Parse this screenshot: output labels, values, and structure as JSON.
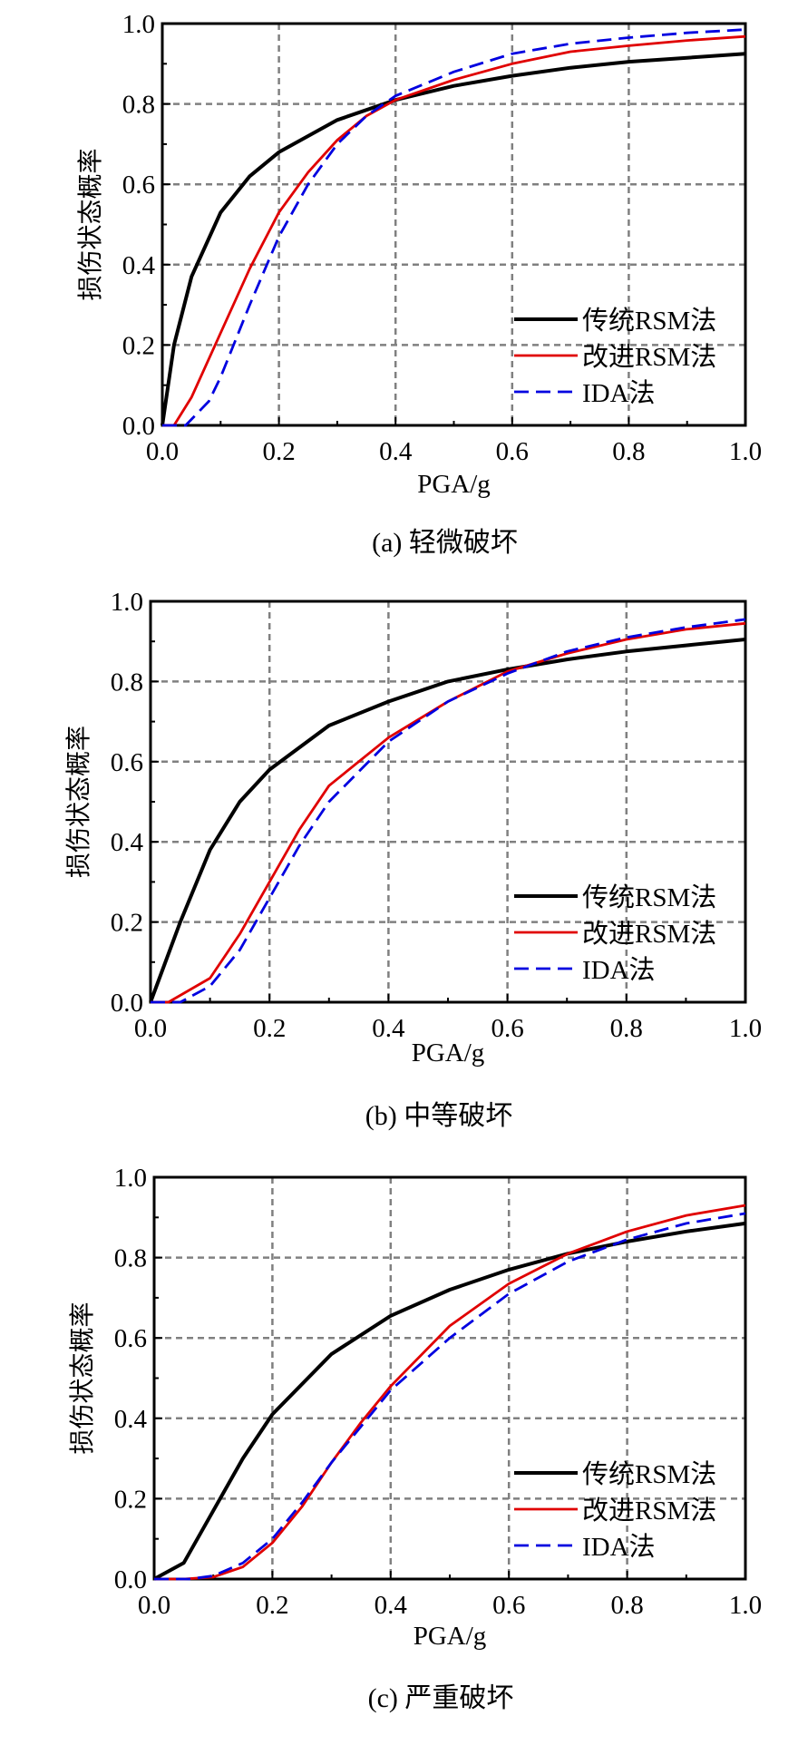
{
  "chart_data": [
    {
      "type": "line",
      "caption": "(a)  轻微破坏",
      "xlabel": "PGA/g",
      "ylabel": "损伤状态概率",
      "xlim": [
        0,
        1.0
      ],
      "ylim": [
        0,
        1.0
      ],
      "xticks": [
        "0.0",
        "0.2",
        "0.4",
        "0.6",
        "0.8",
        "1.0"
      ],
      "yticks": [
        "0.0",
        "0.2",
        "0.4",
        "0.6",
        "0.8",
        "1.0"
      ],
      "grid": true,
      "legend": "bottom-right",
      "series": [
        {
          "name": "传统RSM法",
          "color": "#000000",
          "style": "solid",
          "x": [
            0,
            0.02,
            0.05,
            0.1,
            0.15,
            0.2,
            0.3,
            0.4,
            0.5,
            0.6,
            0.7,
            0.8,
            0.9,
            1.0
          ],
          "y": [
            0,
            0.2,
            0.37,
            0.53,
            0.62,
            0.68,
            0.76,
            0.81,
            0.845,
            0.87,
            0.89,
            0.905,
            0.915,
            0.925
          ]
        },
        {
          "name": "改进RSM法",
          "color": "#e00000",
          "style": "solid",
          "x": [
            0,
            0.02,
            0.05,
            0.1,
            0.15,
            0.2,
            0.25,
            0.3,
            0.35,
            0.4,
            0.5,
            0.6,
            0.7,
            0.8,
            0.9,
            1.0
          ],
          "y": [
            0,
            0,
            0.07,
            0.23,
            0.39,
            0.53,
            0.63,
            0.71,
            0.77,
            0.81,
            0.86,
            0.9,
            0.93,
            0.945,
            0.958,
            0.968
          ]
        },
        {
          "name": "IDA法",
          "color": "#0000e0",
          "style": "dashed",
          "x": [
            0,
            0.04,
            0.08,
            0.1,
            0.15,
            0.2,
            0.25,
            0.3,
            0.35,
            0.4,
            0.5,
            0.6,
            0.7,
            0.8,
            0.9,
            1.0
          ],
          "y": [
            0,
            0,
            0.06,
            0.12,
            0.3,
            0.47,
            0.6,
            0.7,
            0.77,
            0.82,
            0.88,
            0.925,
            0.95,
            0.965,
            0.977,
            0.985
          ]
        }
      ]
    },
    {
      "type": "line",
      "caption": "(b)  中等破坏",
      "xlabel": "PGA/g",
      "ylabel": "损伤状态概率",
      "xlim": [
        0,
        1.0
      ],
      "ylim": [
        0,
        1.0
      ],
      "xticks": [
        "0.0",
        "0.2",
        "0.4",
        "0.6",
        "0.8",
        "1.0"
      ],
      "yticks": [
        "0.0",
        "0.2",
        "0.4",
        "0.6",
        "0.8",
        "1.0"
      ],
      "grid": true,
      "legend": "bottom-right",
      "series": [
        {
          "name": "传统RSM法",
          "color": "#000000",
          "style": "solid",
          "x": [
            0,
            0.05,
            0.1,
            0.15,
            0.2,
            0.3,
            0.4,
            0.5,
            0.6,
            0.7,
            0.8,
            0.9,
            1.0
          ],
          "y": [
            0,
            0.2,
            0.38,
            0.5,
            0.58,
            0.69,
            0.75,
            0.8,
            0.83,
            0.855,
            0.875,
            0.89,
            0.905
          ]
        },
        {
          "name": "改进RSM法",
          "color": "#e00000",
          "style": "solid",
          "x": [
            0,
            0.03,
            0.1,
            0.15,
            0.2,
            0.25,
            0.3,
            0.4,
            0.5,
            0.6,
            0.7,
            0.8,
            0.9,
            1.0
          ],
          "y": [
            0,
            0,
            0.06,
            0.17,
            0.3,
            0.43,
            0.54,
            0.66,
            0.75,
            0.825,
            0.87,
            0.905,
            0.93,
            0.945
          ]
        },
        {
          "name": "IDA法",
          "color": "#0000e0",
          "style": "dashed",
          "x": [
            0,
            0.05,
            0.1,
            0.15,
            0.2,
            0.25,
            0.3,
            0.4,
            0.5,
            0.6,
            0.7,
            0.8,
            0.9,
            1.0
          ],
          "y": [
            0,
            0,
            0.04,
            0.13,
            0.26,
            0.39,
            0.5,
            0.65,
            0.75,
            0.82,
            0.875,
            0.91,
            0.935,
            0.955
          ]
        }
      ]
    },
    {
      "type": "line",
      "caption": "(c)  严重破坏",
      "xlabel": "PGA/g",
      "ylabel": "损伤状态概率",
      "xlim": [
        0,
        1.0
      ],
      "ylim": [
        0,
        1.0
      ],
      "xticks": [
        "0.0",
        "0.2",
        "0.4",
        "0.6",
        "0.8",
        "1.0"
      ],
      "yticks": [
        "0.0",
        "0.2",
        "0.4",
        "0.6",
        "0.8",
        "1.0"
      ],
      "grid": true,
      "legend": "bottom-right",
      "series": [
        {
          "name": "传统RSM法",
          "color": "#000000",
          "style": "solid",
          "x": [
            0,
            0.05,
            0.1,
            0.15,
            0.2,
            0.3,
            0.4,
            0.5,
            0.6,
            0.7,
            0.8,
            0.9,
            1.0
          ],
          "y": [
            0,
            0.04,
            0.17,
            0.3,
            0.41,
            0.56,
            0.655,
            0.72,
            0.77,
            0.81,
            0.84,
            0.865,
            0.885
          ]
        },
        {
          "name": "改进RSM法",
          "color": "#e00000",
          "style": "solid",
          "x": [
            0,
            0.05,
            0.1,
            0.15,
            0.2,
            0.25,
            0.3,
            0.35,
            0.4,
            0.5,
            0.6,
            0.7,
            0.8,
            0.9,
            1.0
          ],
          "y": [
            0,
            0,
            0.005,
            0.03,
            0.09,
            0.18,
            0.29,
            0.39,
            0.48,
            0.63,
            0.735,
            0.81,
            0.865,
            0.905,
            0.93
          ]
        },
        {
          "name": "IDA法",
          "color": "#0000e0",
          "style": "dashed",
          "x": [
            0,
            0.06,
            0.1,
            0.15,
            0.2,
            0.25,
            0.3,
            0.35,
            0.4,
            0.5,
            0.6,
            0.7,
            0.8,
            0.9,
            1.0
          ],
          "y": [
            0,
            0,
            0.008,
            0.04,
            0.1,
            0.19,
            0.29,
            0.38,
            0.47,
            0.6,
            0.71,
            0.79,
            0.845,
            0.885,
            0.91
          ]
        }
      ]
    }
  ]
}
